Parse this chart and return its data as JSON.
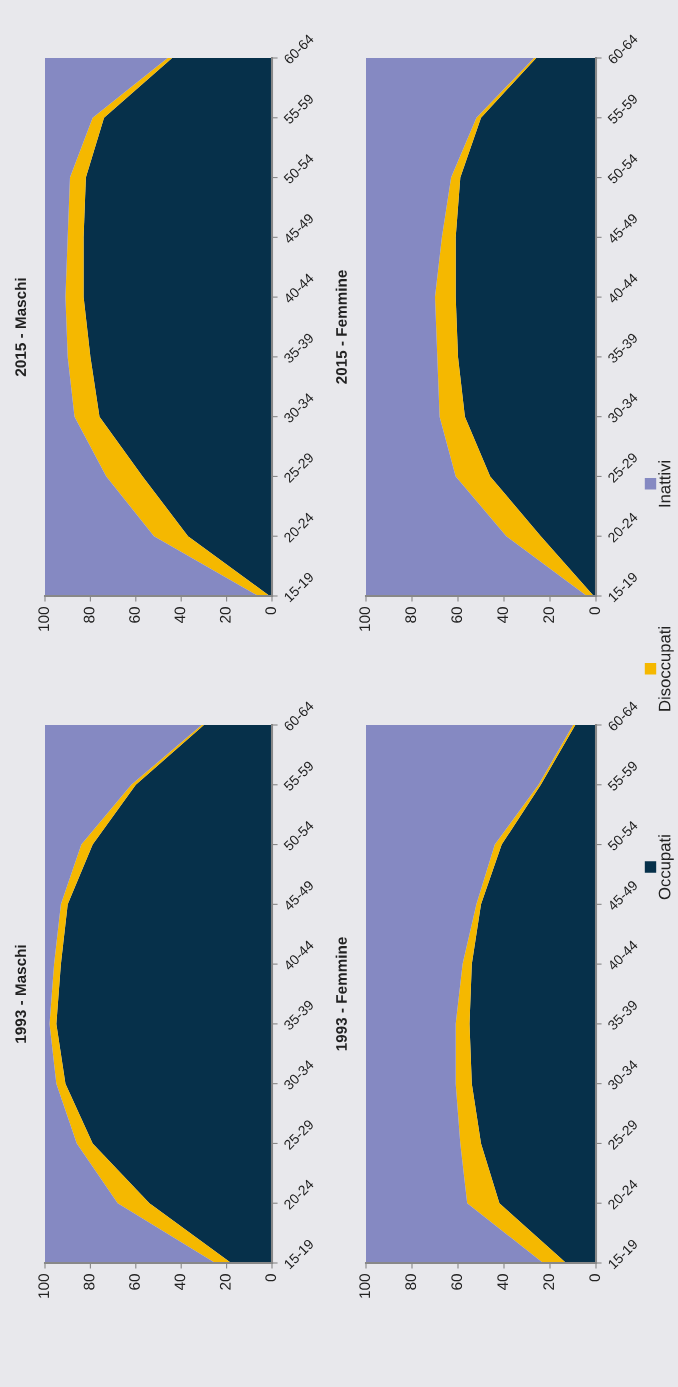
{
  "chart_data": [
    {
      "type": "area",
      "stacked": true,
      "orientation": "horizontal",
      "title": "1993 - Maschi",
      "categories": [
        "60-64",
        "55-59",
        "50-54",
        "45-49",
        "40-44",
        "35-39",
        "30-34",
        "25-29",
        "20-24",
        "15-19"
      ],
      "xlim": [
        100,
        0
      ],
      "xticks": [
        0,
        20,
        40,
        60,
        80,
        100
      ],
      "legend": "right",
      "series": [
        {
          "name": "Occupati",
          "color": "#06304a",
          "values": [
            30,
            60,
            79,
            90,
            93,
            95,
            91,
            79,
            54,
            18
          ]
        },
        {
          "name": "Disoccupati",
          "color": "#f5b800",
          "values": [
            1,
            2,
            5,
            3,
            3,
            3,
            4,
            7,
            14,
            7
          ]
        },
        {
          "name": "Inattivi",
          "color": "#8589c2",
          "values": [
            69,
            38,
            16,
            7,
            4,
            2,
            5,
            14,
            32,
            75
          ]
        }
      ]
    },
    {
      "type": "area",
      "stacked": true,
      "orientation": "horizontal",
      "title": "2015 - Maschi",
      "categories": [
        "60-64",
        "55-59",
        "50-54",
        "45-49",
        "40-44",
        "35-39",
        "30-34",
        "25-29",
        "20-24",
        "15-19"
      ],
      "xlim": [
        100,
        0
      ],
      "xticks": [
        0,
        20,
        40,
        60,
        80,
        100
      ],
      "series": [
        {
          "color": "#06304a",
          "values": [
            44,
            74,
            82,
            83,
            83,
            80,
            76,
            57,
            37,
            1
          ]
        },
        {
          "color": "#f5b800",
          "values": [
            2,
            5,
            7,
            7,
            8,
            10,
            11,
            16,
            15,
            5
          ]
        },
        {
          "color": "#8589c2",
          "values": [
            54,
            21,
            11,
            10,
            9,
            10,
            13,
            27,
            48,
            94
          ]
        }
      ]
    },
    {
      "type": "area",
      "stacked": true,
      "orientation": "horizontal",
      "title": "1993 - Femmine",
      "categories": [
        "60-64",
        "55-59",
        "50-54",
        "45-49",
        "40-44",
        "35-39",
        "30-34",
        "25-29",
        "20-24",
        "15-19"
      ],
      "xlim": [
        100,
        0
      ],
      "xticks": [
        0,
        20,
        40,
        60,
        80,
        100
      ],
      "series": [
        {
          "color": "#06304a",
          "values": [
            9,
            24,
            41,
            50,
            54,
            55,
            54,
            50,
            42,
            13
          ]
        },
        {
          "color": "#f5b800",
          "values": [
            1,
            1,
            3,
            2,
            4,
            6,
            7,
            9,
            14,
            10
          ]
        },
        {
          "color": "#8589c2",
          "values": [
            90,
            75,
            56,
            48,
            42,
            39,
            39,
            41,
            44,
            77
          ]
        }
      ]
    },
    {
      "type": "area",
      "stacked": true,
      "orientation": "horizontal",
      "title": "2015 - Femmine",
      "categories": [
        "60-64",
        "55-59",
        "50-54",
        "45-49",
        "40-44",
        "35-39",
        "30-34",
        "25-29",
        "20-24",
        "15-19"
      ],
      "xlim": [
        100,
        0
      ],
      "xticks": [
        0,
        20,
        40,
        60,
        80,
        100
      ],
      "series": [
        {
          "color": "#06304a",
          "values": [
            26,
            50,
            59,
            61,
            61,
            60,
            57,
            46,
            24,
            1
          ]
        },
        {
          "color": "#f5b800",
          "values": [
            1,
            2,
            4,
            6,
            9,
            9,
            11,
            15,
            15,
            3
          ]
        },
        {
          "color": "#8589c2",
          "values": [
            73,
            48,
            37,
            33,
            30,
            31,
            32,
            39,
            61,
            96
          ]
        }
      ]
    }
  ]
}
